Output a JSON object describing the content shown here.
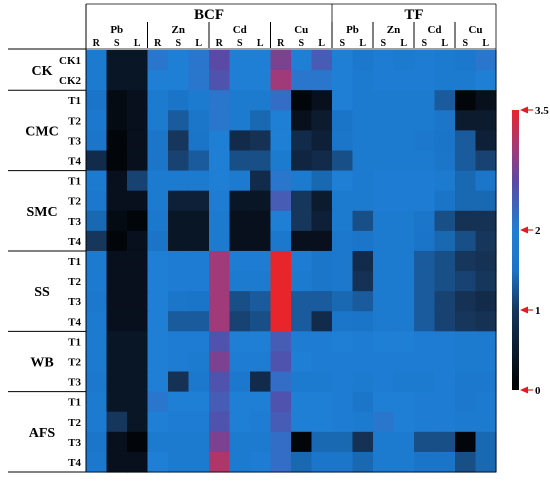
{
  "chart_data": {
    "type": "heatmap",
    "color_scale": {
      "min": 0,
      "max": 3.5,
      "stops": [
        {
          "value": 0,
          "color": "#000000"
        },
        {
          "value": 1,
          "color": "#17365c"
        },
        {
          "value": 1.5,
          "color": "#1a74c8"
        },
        {
          "value": 2,
          "color": "#1f7fd4"
        },
        {
          "value": 2.6,
          "color": "#5a4aa6"
        },
        {
          "value": 3,
          "color": "#a03a78"
        },
        {
          "value": 3.5,
          "color": "#e8252b"
        }
      ],
      "ticks": [
        {
          "value": 3.5,
          "label": "3.5"
        },
        {
          "value": 2,
          "label": "2"
        },
        {
          "value": 1,
          "label": "1"
        },
        {
          "value": 0,
          "label": "0"
        }
      ],
      "marker_color": "#e01b22"
    },
    "top_groups": [
      {
        "label": "BCF",
        "columns": 12
      },
      {
        "label": "TF",
        "columns": 8
      }
    ],
    "metal_groups": [
      {
        "label": "Pb",
        "subs": [
          "R",
          "S",
          "L"
        ]
      },
      {
        "label": "Zn",
        "subs": [
          "R",
          "S",
          "L"
        ]
      },
      {
        "label": "Cd",
        "subs": [
          "R",
          "S",
          "L"
        ]
      },
      {
        "label": "Cu",
        "subs": [
          "R",
          "S",
          "L"
        ]
      },
      {
        "label": "Pb",
        "subs": [
          "S",
          "L"
        ]
      },
      {
        "label": "Zn",
        "subs": [
          "S",
          "L"
        ]
      },
      {
        "label": "Cd",
        "subs": [
          "S",
          "L"
        ]
      },
      {
        "label": "Cu",
        "subs": [
          "S",
          "L"
        ]
      }
    ],
    "row_groups": [
      {
        "label": "CK",
        "rows": [
          "CK1",
          "CK2"
        ]
      },
      {
        "label": "CMC",
        "rows": [
          "T1",
          "T2",
          "T3",
          "T4"
        ]
      },
      {
        "label": "SMC",
        "rows": [
          "T1",
          "T2",
          "T3",
          "T4"
        ]
      },
      {
        "label": "SS",
        "rows": [
          "T1",
          "T2",
          "T3",
          "T4"
        ]
      },
      {
        "label": "WB",
        "rows": [
          "T1",
          "T2",
          "T3"
        ]
      },
      {
        "label": "AFS",
        "rows": [
          "T1",
          "T2",
          "T3",
          "T4"
        ]
      }
    ],
    "values": [
      [
        1.8,
        0.4,
        0.4,
        2.1,
        2.0,
        2.1,
        2.6,
        2.0,
        2.0,
        2.8,
        2.0,
        2.4,
        2.0,
        1.7,
        1.9,
        1.8,
        1.9,
        1.8,
        1.7,
        2.1
      ],
      [
        1.8,
        0.4,
        0.4,
        2.0,
        2.0,
        2.1,
        2.5,
        2.0,
        2.0,
        3.0,
        2.1,
        2.1,
        2.0,
        1.8,
        1.9,
        1.9,
        1.9,
        1.8,
        1.8,
        2.0
      ],
      [
        1.5,
        0.2,
        0.3,
        1.8,
        1.5,
        1.8,
        2.1,
        1.8,
        1.8,
        2.2,
        0.1,
        0.3,
        2.0,
        1.8,
        1.8,
        1.8,
        1.8,
        1.3,
        0.1,
        0.3
      ],
      [
        1.7,
        0.2,
        0.3,
        1.8,
        1.3,
        1.6,
        2.1,
        1.8,
        1.4,
        2.0,
        0.3,
        0.5,
        1.5,
        1.8,
        1.8,
        1.8,
        1.8,
        1.6,
        0.5,
        0.5
      ],
      [
        1.6,
        0.1,
        0.3,
        1.6,
        1.0,
        1.5,
        2.0,
        0.8,
        0.9,
        2.0,
        0.8,
        0.6,
        1.6,
        1.8,
        1.8,
        1.8,
        1.7,
        1.5,
        1.3,
        0.6
      ],
      [
        0.8,
        0.1,
        0.3,
        1.6,
        1.1,
        1.3,
        2.0,
        1.2,
        1.2,
        1.8,
        0.7,
        0.8,
        1.2,
        1.8,
        1.8,
        1.8,
        1.8,
        1.6,
        1.3,
        1.1
      ],
      [
        1.8,
        0.3,
        1.1,
        1.8,
        1.8,
        1.8,
        2.0,
        1.8,
        0.8,
        2.1,
        1.8,
        1.4,
        2.0,
        1.8,
        1.9,
        1.9,
        1.9,
        1.8,
        1.4,
        1.6
      ],
      [
        1.7,
        0.3,
        0.3,
        1.8,
        0.6,
        0.6,
        1.9,
        0.4,
        0.4,
        2.4,
        1.0,
        0.5,
        1.8,
        1.8,
        1.9,
        1.9,
        1.9,
        1.5,
        1.4,
        1.4
      ],
      [
        1.4,
        0.2,
        0.1,
        1.7,
        0.4,
        0.4,
        1.8,
        0.3,
        0.3,
        2.0,
        1.0,
        0.6,
        1.8,
        1.2,
        1.8,
        1.8,
        1.6,
        1.2,
        0.9,
        0.9
      ],
      [
        1.0,
        0.1,
        0.3,
        1.5,
        0.4,
        0.4,
        1.8,
        0.3,
        0.3,
        1.7,
        0.3,
        0.3,
        1.7,
        1.6,
        1.8,
        1.8,
        1.5,
        1.4,
        1.2,
        1.0
      ],
      [
        1.8,
        0.3,
        0.3,
        2.0,
        1.9,
        1.9,
        3.0,
        1.9,
        1.9,
        3.5,
        1.9,
        1.6,
        1.7,
        0.8,
        1.8,
        1.8,
        1.3,
        1.2,
        1.0,
        0.9
      ],
      [
        1.8,
        0.3,
        0.3,
        2.0,
        1.9,
        1.9,
        3.0,
        1.8,
        1.8,
        3.5,
        1.8,
        1.6,
        1.7,
        0.9,
        1.8,
        1.8,
        1.3,
        1.2,
        1.1,
        1.0
      ],
      [
        1.7,
        0.3,
        0.3,
        2.0,
        1.6,
        1.5,
        3.0,
        1.2,
        1.3,
        3.5,
        1.3,
        1.3,
        1.4,
        1.3,
        1.8,
        1.8,
        1.3,
        1.1,
        0.9,
        0.8
      ],
      [
        1.8,
        0.3,
        0.3,
        2.0,
        1.3,
        1.3,
        3.0,
        1.1,
        1.2,
        3.5,
        1.3,
        0.8,
        1.6,
        1.5,
        1.8,
        1.8,
        1.3,
        1.1,
        1.0,
        0.9
      ],
      [
        1.8,
        0.4,
        0.4,
        2.0,
        1.9,
        1.9,
        2.5,
        2.0,
        2.0,
        2.4,
        1.9,
        1.9,
        2.0,
        1.9,
        2.0,
        2.0,
        1.9,
        1.9,
        1.8,
        1.8
      ],
      [
        1.8,
        0.4,
        0.4,
        2.0,
        1.9,
        1.8,
        2.8,
        1.9,
        1.9,
        2.5,
        2.0,
        1.9,
        1.9,
        1.9,
        1.9,
        1.9,
        1.9,
        1.9,
        1.8,
        1.8
      ],
      [
        1.7,
        0.4,
        0.4,
        2.0,
        0.9,
        1.7,
        2.5,
        1.7,
        0.8,
        2.2,
        1.8,
        1.8,
        1.9,
        1.8,
        1.9,
        1.8,
        1.8,
        1.9,
        1.7,
        1.7
      ],
      [
        1.8,
        0.4,
        0.4,
        2.1,
        2.0,
        2.0,
        2.4,
        2.0,
        2.0,
        2.5,
        2.0,
        2.0,
        1.9,
        1.6,
        2.0,
        2.0,
        1.9,
        1.9,
        1.7,
        1.8
      ],
      [
        1.8,
        1.0,
        0.4,
        2.0,
        1.9,
        1.9,
        2.5,
        2.0,
        1.9,
        2.4,
        2.0,
        2.0,
        1.9,
        1.8,
        2.1,
        2.0,
        1.9,
        1.9,
        1.8,
        1.8
      ],
      [
        1.6,
        0.3,
        0.1,
        1.8,
        1.8,
        1.8,
        2.8,
        1.8,
        1.8,
        2.2,
        0.1,
        1.4,
        1.4,
        0.9,
        1.8,
        1.8,
        1.2,
        1.2,
        0.1,
        1.4
      ],
      [
        1.7,
        0.3,
        0.3,
        2.0,
        1.8,
        1.8,
        3.1,
        1.8,
        1.9,
        2.2,
        1.4,
        1.6,
        1.6,
        1.4,
        1.8,
        1.8,
        1.5,
        1.5,
        1.2,
        1.4
      ]
    ],
    "title": "",
    "xlabel": "",
    "ylabel": ""
  }
}
